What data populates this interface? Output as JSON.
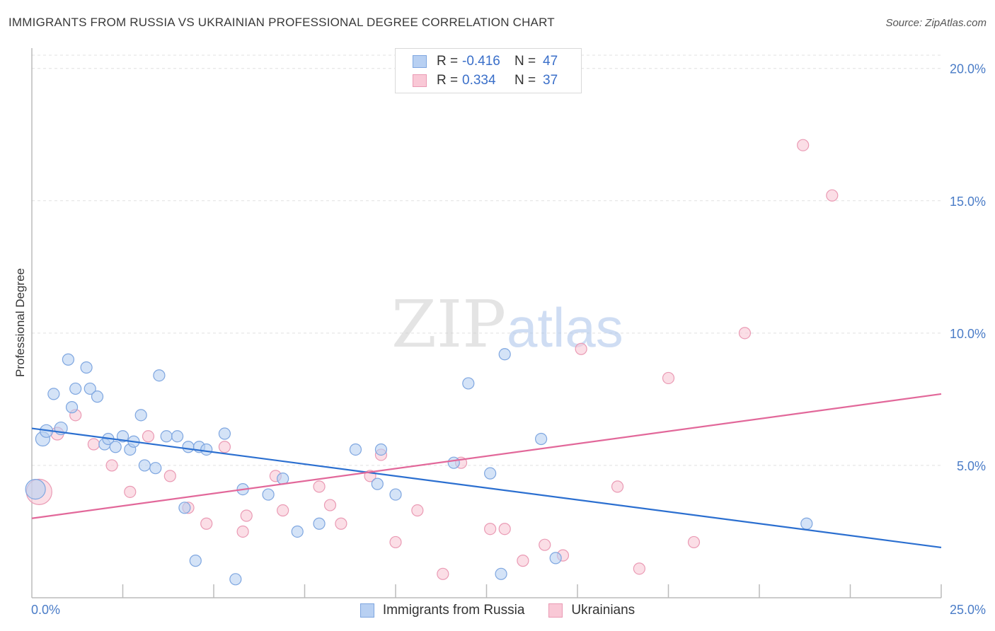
{
  "header": {
    "title": "IMMIGRANTS FROM RUSSIA VS UKRAINIAN PROFESSIONAL DEGREE CORRELATION CHART",
    "source": "Source: ZipAtlas.com"
  },
  "watermark": {
    "zip": "ZIP",
    "atlas": "atlas"
  },
  "legend": {
    "rows": [
      {
        "r_label": "R =",
        "r_value": "-0.416",
        "n_label": "N =",
        "n_value": "47"
      },
      {
        "r_label": "R =",
        "r_value": "0.334",
        "n_label": "N =",
        "n_value": "37"
      }
    ]
  },
  "colors": {
    "russia_fill": "#b8d0f2",
    "russia_stroke": "#7ea6e0",
    "russia_line": "#2b6fd0",
    "ukraine_fill": "#f9c8d6",
    "ukraine_stroke": "#ea9ab4",
    "ukraine_line": "#e2689a",
    "grid": "#e0e0e0",
    "axis": "#bbbbbb"
  },
  "chart_data": {
    "type": "scatter",
    "title": "IMMIGRANTS FROM RUSSIA VS UKRAINIAN PROFESSIONAL DEGREE CORRELATION CHART",
    "xlabel": "",
    "ylabel": "Professional Degree",
    "xlim": [
      0,
      25
    ],
    "ylim": [
      0,
      20.5
    ],
    "x_tick_labels": [
      "0.0%",
      "25.0%"
    ],
    "y_ticks": [
      5,
      10,
      15,
      20
    ],
    "y_tick_labels": [
      "5.0%",
      "10.0%",
      "15.0%",
      "20.0%"
    ],
    "grid": true,
    "legend_position": "bottom",
    "series": [
      {
        "name": "Immigrants from Russia",
        "r": -0.416,
        "n": 47,
        "trend": {
          "x": [
            0,
            25
          ],
          "y": [
            6.4,
            1.9
          ]
        },
        "points": [
          [
            0.1,
            4.1,
            14
          ],
          [
            0.3,
            6.0,
            10
          ],
          [
            0.4,
            6.3,
            9
          ],
          [
            0.6,
            7.7,
            8
          ],
          [
            0.8,
            6.4,
            9
          ],
          [
            1.0,
            9.0,
            8
          ],
          [
            1.1,
            7.2,
            8
          ],
          [
            1.2,
            7.9,
            8
          ],
          [
            1.5,
            8.7,
            8
          ],
          [
            1.6,
            7.9,
            8
          ],
          [
            1.8,
            7.6,
            8
          ],
          [
            2.0,
            5.8,
            8
          ],
          [
            2.1,
            6.0,
            8
          ],
          [
            2.3,
            5.7,
            8
          ],
          [
            2.5,
            6.1,
            8
          ],
          [
            2.7,
            5.6,
            8
          ],
          [
            2.8,
            5.9,
            8
          ],
          [
            3.0,
            6.9,
            8
          ],
          [
            3.1,
            5.0,
            8
          ],
          [
            3.4,
            4.9,
            8
          ],
          [
            3.5,
            8.4,
            8
          ],
          [
            3.7,
            6.1,
            8
          ],
          [
            4.0,
            6.1,
            8
          ],
          [
            4.2,
            3.4,
            8
          ],
          [
            4.3,
            5.7,
            8
          ],
          [
            4.5,
            1.4,
            8
          ],
          [
            4.6,
            5.7,
            8
          ],
          [
            4.8,
            5.6,
            8
          ],
          [
            5.3,
            6.2,
            8
          ],
          [
            5.6,
            0.7,
            8
          ],
          [
            5.8,
            4.1,
            8
          ],
          [
            6.5,
            3.9,
            8
          ],
          [
            6.9,
            4.5,
            8
          ],
          [
            7.3,
            2.5,
            8
          ],
          [
            7.9,
            2.8,
            8
          ],
          [
            8.9,
            5.6,
            8
          ],
          [
            9.5,
            4.3,
            8
          ],
          [
            9.6,
            5.6,
            8
          ],
          [
            10.0,
            3.9,
            8
          ],
          [
            11.6,
            5.1,
            8
          ],
          [
            12.0,
            8.1,
            8
          ],
          [
            12.6,
            4.7,
            8
          ],
          [
            12.9,
            0.9,
            8
          ],
          [
            13.0,
            9.2,
            8
          ],
          [
            14.0,
            6.0,
            8
          ],
          [
            14.4,
            1.5,
            8
          ],
          [
            21.3,
            2.8,
            8
          ]
        ]
      },
      {
        "name": "Ukrainians",
        "r": 0.334,
        "n": 37,
        "trend": {
          "x": [
            0,
            25
          ],
          "y": [
            3.0,
            7.7
          ]
        },
        "points": [
          [
            0.2,
            4.0,
            18
          ],
          [
            0.7,
            6.2,
            9
          ],
          [
            1.2,
            6.9,
            8
          ],
          [
            1.7,
            5.8,
            8
          ],
          [
            2.2,
            5.0,
            8
          ],
          [
            2.7,
            4.0,
            8
          ],
          [
            3.2,
            6.1,
            8
          ],
          [
            3.8,
            4.6,
            8
          ],
          [
            4.3,
            3.4,
            8
          ],
          [
            4.8,
            2.8,
            8
          ],
          [
            5.3,
            5.7,
            8
          ],
          [
            5.8,
            2.5,
            8
          ],
          [
            5.9,
            3.1,
            8
          ],
          [
            6.7,
            4.6,
            8
          ],
          [
            6.9,
            3.3,
            8
          ],
          [
            7.9,
            4.2,
            8
          ],
          [
            8.2,
            3.5,
            8
          ],
          [
            8.5,
            2.8,
            8
          ],
          [
            9.3,
            4.6,
            8
          ],
          [
            9.6,
            5.4,
            8
          ],
          [
            10.0,
            2.1,
            8
          ],
          [
            10.6,
            3.3,
            8
          ],
          [
            11.3,
            0.9,
            8
          ],
          [
            11.8,
            5.1,
            8
          ],
          [
            12.6,
            2.6,
            8
          ],
          [
            13.0,
            2.6,
            8
          ],
          [
            13.5,
            1.4,
            8
          ],
          [
            14.1,
            2.0,
            8
          ],
          [
            14.6,
            1.6,
            8
          ],
          [
            15.1,
            9.4,
            8
          ],
          [
            16.1,
            4.2,
            8
          ],
          [
            16.7,
            1.1,
            8
          ],
          [
            17.5,
            8.3,
            8
          ],
          [
            18.2,
            2.1,
            8
          ],
          [
            19.6,
            10.0,
            8
          ],
          [
            21.2,
            17.1,
            8
          ],
          [
            22.0,
            15.2,
            8
          ]
        ]
      }
    ]
  }
}
